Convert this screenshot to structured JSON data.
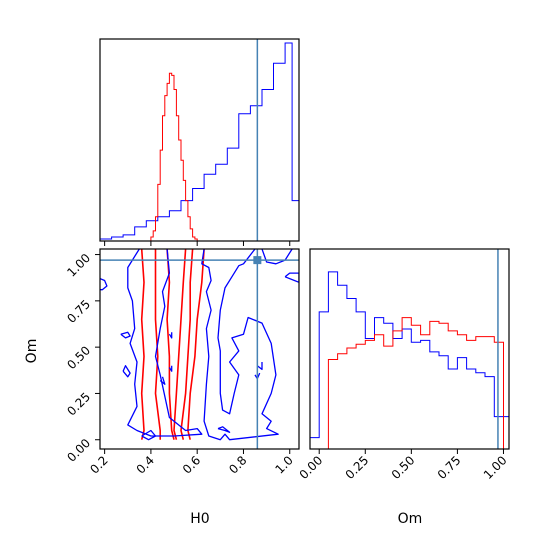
{
  "chart_data": {
    "type": "corner",
    "title": "",
    "parameters": [
      "H0",
      "Om"
    ],
    "truth": {
      "H0": 0.86,
      "Om": 0.97
    },
    "colors": {
      "series_blue": "#0000ff",
      "series_red": "#ff0000",
      "truth": "#4682b4",
      "axes": "#000000"
    },
    "panels": [
      {
        "id": "h0-marginal",
        "type": "step-histogram",
        "xlim": [
          0.18,
          1.04
        ],
        "ylim": [
          0,
          1
        ],
        "show_tick_labels": false,
        "series": [
          {
            "color": "series_blue",
            "bin_edges": [
              0.18,
              0.23,
              0.28,
              0.33,
              0.38,
              0.43,
              0.48,
              0.53,
              0.58,
              0.63,
              0.68,
              0.73,
              0.78,
              0.83,
              0.88,
              0.93,
              0.98,
              1.01,
              1.04
            ],
            "heights": [
              0.01,
              0.02,
              0.03,
              0.07,
              0.1,
              0.12,
              0.15,
              0.2,
              0.26,
              0.33,
              0.38,
              0.46,
              0.63,
              0.67,
              0.75,
              0.88,
              0.98,
              0.2
            ]
          },
          {
            "color": "series_red",
            "bin_edges": [
              0.4,
              0.41,
              0.42,
              0.43,
              0.44,
              0.45,
              0.46,
              0.47,
              0.48,
              0.49,
              0.5,
              0.51,
              0.52,
              0.53,
              0.54,
              0.55,
              0.56,
              0.57,
              0.58,
              0.59,
              0.6
            ],
            "heights": [
              0.02,
              0.05,
              0.12,
              0.28,
              0.45,
              0.62,
              0.72,
              0.78,
              0.83,
              0.82,
              0.75,
              0.62,
              0.5,
              0.4,
              0.3,
              0.2,
              0.12,
              0.06,
              0.02,
              0.01
            ]
          }
        ]
      },
      {
        "id": "joint-h0-om",
        "type": "contour",
        "xlim": [
          0.18,
          1.04
        ],
        "ylim": [
          -0.05,
          1.03
        ],
        "xticks": [
          "0.2",
          "0.4",
          "0.6",
          "0.8",
          "1.0"
        ],
        "yticks": [
          "0.00",
          "0.25",
          "0.50",
          "0.75",
          "1.00"
        ],
        "xlabel": "H0",
        "ylabel": "Om",
        "series": [
          {
            "color": "series_red",
            "contours": [
              [
                [
                  0.36,
                  1.03
                ],
                [
                  0.37,
                  0.85
                ],
                [
                  0.36,
                  0.65
                ],
                [
                  0.37,
                  0.45
                ],
                [
                  0.36,
                  0.25
                ],
                [
                  0.37,
                  0.05
                ],
                [
                  0.36,
                  0.0
                ]
              ],
              [
                [
                  0.42,
                  1.03
                ],
                [
                  0.42,
                  0.85
                ],
                [
                  0.42,
                  0.65
                ],
                [
                  0.43,
                  0.45
                ],
                [
                  0.42,
                  0.25
                ],
                [
                  0.44,
                  0.05
                ],
                [
                  0.44,
                  0.0
                ]
              ],
              [
                [
                  0.47,
                  1.03
                ],
                [
                  0.48,
                  0.85
                ],
                [
                  0.47,
                  0.65
                ],
                [
                  0.48,
                  0.45
                ],
                [
                  0.48,
                  0.25
                ],
                [
                  0.49,
                  0.05
                ],
                [
                  0.5,
                  0.0
                ]
              ],
              [
                [
                  0.55,
                  1.03
                ],
                [
                  0.54,
                  0.85
                ],
                [
                  0.53,
                  0.65
                ],
                [
                  0.52,
                  0.45
                ],
                [
                  0.51,
                  0.25
                ],
                [
                  0.5,
                  0.05
                ],
                [
                  0.51,
                  0.0
                ]
              ],
              [
                [
                  0.58,
                  1.03
                ],
                [
                  0.57,
                  0.85
                ],
                [
                  0.57,
                  0.65
                ],
                [
                  0.56,
                  0.45
                ],
                [
                  0.55,
                  0.25
                ],
                [
                  0.53,
                  0.05
                ],
                [
                  0.54,
                  0.0
                ]
              ],
              [
                [
                  0.63,
                  1.03
                ],
                [
                  0.62,
                  0.85
                ],
                [
                  0.6,
                  0.65
                ],
                [
                  0.59,
                  0.45
                ],
                [
                  0.57,
                  0.25
                ],
                [
                  0.56,
                  0.05
                ],
                [
                  0.57,
                  0.0
                ]
              ]
            ]
          },
          {
            "color": "series_blue",
            "contours": [
              [
                [
                  0.18,
                  0.87
                ],
                [
                  0.2,
                  0.86
                ],
                [
                  0.21,
                  0.83
                ],
                [
                  0.19,
                  0.81
                ],
                [
                  0.18,
                  0.81
                ]
              ],
              [
                [
                  0.35,
                  1.03
                ],
                [
                  0.3,
                  0.93
                ],
                [
                  0.3,
                  0.82
                ],
                [
                  0.32,
                  0.75
                ],
                [
                  0.33,
                  0.6
                ],
                [
                  0.31,
                  0.52
                ],
                [
                  0.34,
                  0.42
                ],
                [
                  0.33,
                  0.3
                ],
                [
                  0.34,
                  0.18
                ],
                [
                  0.3,
                  0.08
                ],
                [
                  0.34,
                  0.05
                ],
                [
                  0.4,
                  0.02
                ],
                [
                  0.5,
                  0.02
                ],
                [
                  0.62,
                  0.03
                ],
                [
                  0.6,
                  0.06
                ],
                [
                  0.55,
                  0.05
                ],
                [
                  0.48,
                  0.12
                ],
                [
                  0.44,
                  0.35
                ],
                [
                  0.42,
                  0.45
                ],
                [
                  0.44,
                  0.6
                ],
                [
                  0.46,
                  0.72
                ],
                [
                  0.45,
                  0.8
                ],
                [
                  0.48,
                  0.9
                ],
                [
                  0.47,
                  1.03
                ]
              ],
              [
                [
                  0.63,
                  1.03
                ],
                [
                  0.62,
                  0.95
                ],
                [
                  0.65,
                  0.93
                ],
                [
                  0.66,
                  0.86
                ],
                [
                  0.64,
                  0.8
                ],
                [
                  0.66,
                  0.7
                ],
                [
                  0.64,
                  0.6
                ],
                [
                  0.65,
                  0.45
                ],
                [
                  0.64,
                  0.3
                ],
                [
                  0.63,
                  0.1
                ],
                [
                  0.65,
                  0.02
                ],
                [
                  0.7,
                  0.0
                ],
                [
                  0.72,
                  0.03
                ],
                [
                  0.74,
                  0.0
                ],
                [
                  0.95,
                  0.03
                ],
                [
                  0.9,
                  0.06
                ],
                [
                  0.92,
                  0.1
                ],
                [
                  0.88,
                  0.14
                ],
                [
                  0.92,
                  0.25
                ],
                [
                  0.94,
                  0.35
                ],
                [
                  0.92,
                  0.52
                ],
                [
                  0.88,
                  0.63
                ],
                [
                  0.82,
                  0.66
                ],
                [
                  0.8,
                  0.57
                ],
                [
                  0.75,
                  0.55
                ],
                [
                  0.78,
                  0.48
                ],
                [
                  0.74,
                  0.42
                ],
                [
                  0.78,
                  0.35
                ],
                [
                  0.76,
                  0.25
                ],
                [
                  0.74,
                  0.14
                ],
                [
                  0.71,
                  0.16
                ],
                [
                  0.7,
                  0.25
                ],
                [
                  0.7,
                  0.35
                ],
                [
                  0.7,
                  0.48
                ],
                [
                  0.69,
                  0.55
                ],
                [
                  0.7,
                  0.7
                ],
                [
                  0.72,
                  0.82
                ],
                [
                  0.75,
                  0.88
                ],
                [
                  0.78,
                  0.94
                ],
                [
                  0.8,
                  0.95
                ],
                [
                  0.85,
                  1.03
                ]
              ],
              [
                [
                  0.88,
                  1.03
                ],
                [
                  0.9,
                  0.96
                ],
                [
                  0.94,
                  0.95
                ],
                [
                  0.98,
                  0.97
                ],
                [
                  1.01,
                  1.03
                ]
              ],
              [
                [
                  0.98,
                  0.88
                ],
                [
                  1.02,
                  0.86
                ],
                [
                  1.04,
                  0.85
                ],
                [
                  1.04,
                  0.9
                ],
                [
                  1.0,
                  0.9
                ],
                [
                  0.98,
                  0.88
                ]
              ],
              [
                [
                  0.27,
                  0.57
                ],
                [
                  0.29,
                  0.55
                ],
                [
                  0.31,
                  0.56
                ],
                [
                  0.3,
                  0.58
                ],
                [
                  0.27,
                  0.57
                ]
              ],
              [
                [
                  0.28,
                  0.37
                ],
                [
                  0.3,
                  0.34
                ],
                [
                  0.31,
                  0.36
                ],
                [
                  0.29,
                  0.4
                ],
                [
                  0.28,
                  0.37
                ]
              ],
              [
                [
                  0.44,
                  0.32
                ],
                [
                  0.46,
                  0.3
                ],
                [
                  0.45,
                  0.34
                ]
              ],
              [
                [
                  0.48,
                  0.39
                ],
                [
                  0.49,
                  0.37
                ],
                [
                  0.49,
                  0.4
                ]
              ],
              [
                [
                  0.48,
                  0.57
                ],
                [
                  0.49,
                  0.55
                ],
                [
                  0.49,
                  0.58
                ]
              ],
              [
                [
                  0.36,
                  0.02
                ],
                [
                  0.39,
                  0.0
                ],
                [
                  0.42,
                  0.02
                ],
                [
                  0.4,
                  0.05
                ],
                [
                  0.36,
                  0.02
                ]
              ],
              [
                [
                  0.69,
                  0.06
                ],
                [
                  0.72,
                  0.05
                ],
                [
                  0.74,
                  0.04
                ],
                [
                  0.71,
                  0.07
                ],
                [
                  0.69,
                  0.06
                ]
              ],
              [
                [
                  0.86,
                  0.4
                ],
                [
                  0.88,
                  0.38
                ],
                [
                  0.88,
                  0.42
                ]
              ],
              [
                [
                  0.85,
                  0.35
                ],
                [
                  0.86,
                  0.33
                ],
                [
                  0.87,
                  0.36
                ]
              ]
            ]
          }
        ]
      },
      {
        "id": "om-marginal",
        "type": "step-histogram",
        "xlim": [
          -0.05,
          1.03
        ],
        "ylim": [
          0,
          1.05
        ],
        "xticks": [
          "0.00",
          "0.25",
          "0.50",
          "0.75",
          "1.00"
        ],
        "xlabel": "Om",
        "series": [
          {
            "color": "series_blue",
            "bin_edges": [
              -0.05,
              0.0,
              0.05,
              0.1,
              0.15,
              0.2,
              0.25,
              0.3,
              0.35,
              0.4,
              0.45,
              0.5,
              0.55,
              0.6,
              0.65,
              0.7,
              0.75,
              0.8,
              0.85,
              0.9,
              0.95,
              1.0,
              1.03
            ],
            "heights": [
              0.06,
              0.72,
              0.93,
              0.86,
              0.79,
              0.72,
              0.58,
              0.69,
              0.66,
              0.58,
              0.63,
              0.56,
              0.57,
              0.51,
              0.49,
              0.42,
              0.48,
              0.42,
              0.4,
              0.38,
              0.17,
              0.17
            ]
          },
          {
            "color": "series_red",
            "bin_edges": [
              0.0,
              0.05,
              0.1,
              0.15,
              0.2,
              0.25,
              0.3,
              0.35,
              0.4,
              0.45,
              0.5,
              0.55,
              0.6,
              0.65,
              0.7,
              0.75,
              0.8,
              0.85,
              0.9,
              0.95,
              1.0
            ],
            "heights": [
              0.0,
              0.47,
              0.5,
              0.53,
              0.55,
              0.57,
              0.6,
              0.54,
              0.62,
              0.69,
              0.65,
              0.6,
              0.67,
              0.66,
              0.62,
              0.6,
              0.57,
              0.59,
              0.59,
              0.56
            ]
          }
        ]
      }
    ]
  }
}
